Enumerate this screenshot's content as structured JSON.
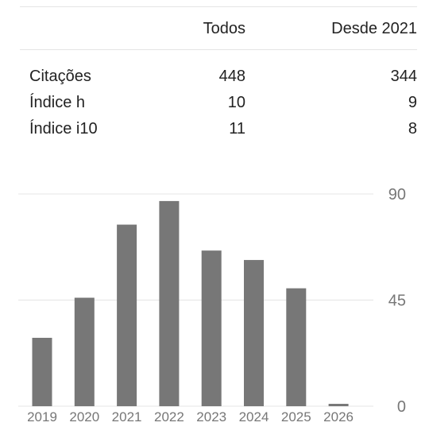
{
  "stats": {
    "headers": [
      "",
      "Todos",
      "Desde 2021"
    ],
    "rows": [
      {
        "label": "Citações",
        "all": "448",
        "since": "344"
      },
      {
        "label": "Índice h",
        "all": "10",
        "since": "9"
      },
      {
        "label": "Índice i10",
        "all": "11",
        "since": "8"
      }
    ]
  },
  "chart_data": {
    "type": "bar",
    "categories": [
      "2019",
      "2020",
      "2021",
      "2022",
      "2023",
      "2024",
      "2025",
      "2026"
    ],
    "values": [
      29,
      46,
      77,
      87,
      66,
      62,
      50,
      1
    ],
    "yticks": [
      "0",
      "45",
      "90"
    ],
    "ylim": [
      0,
      90
    ],
    "grid": true,
    "bar_color": "#777777",
    "title": "",
    "xlabel": "",
    "ylabel": ""
  }
}
